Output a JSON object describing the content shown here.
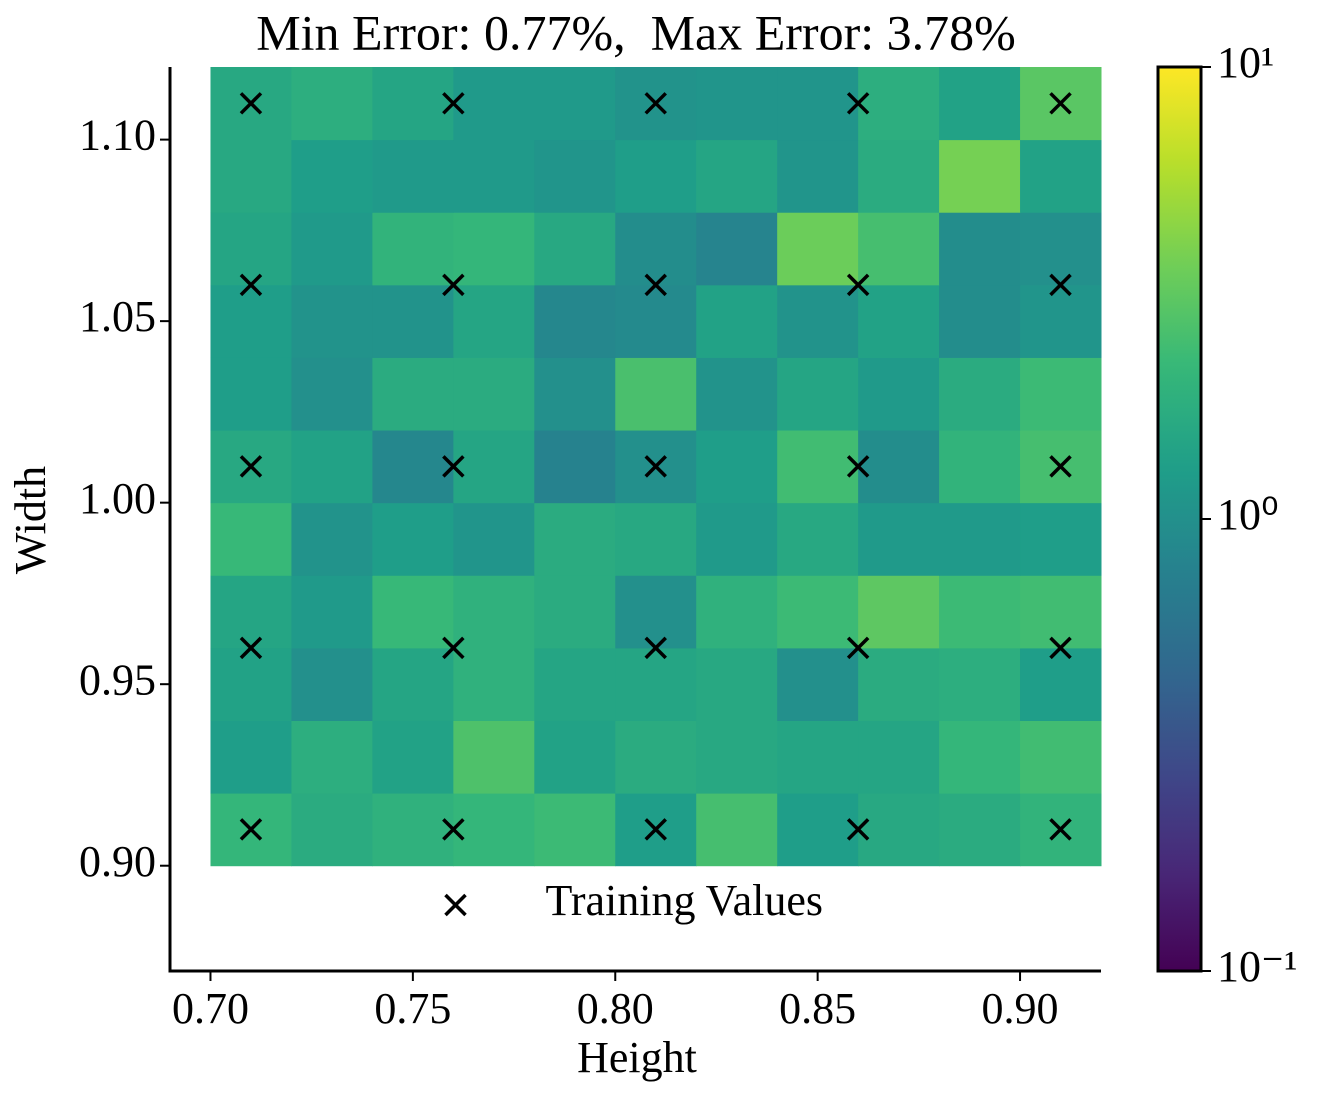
{
  "chart_data": {
    "type": "heatmap",
    "title": "Min Error: 0.77%,  Max Error: 3.78%",
    "x_label": "Height",
    "y_label": "Width",
    "x": [
      0.71,
      0.73,
      0.75,
      0.77,
      0.79,
      0.81,
      0.83,
      0.85,
      0.87,
      0.89,
      0.91
    ],
    "y": [
      0.91,
      0.93,
      0.95,
      0.97,
      0.99,
      1.01,
      1.03,
      1.05,
      1.07,
      1.09,
      1.11
    ],
    "z": [
      [
        2.1,
        1.7,
        1.9,
        2.1,
        2.3,
        1.3,
        2.5,
        1.3,
        1.6,
        1.7,
        2.0
      ],
      [
        1.3,
        1.8,
        1.4,
        2.7,
        1.4,
        1.7,
        1.6,
        1.5,
        1.5,
        2.1,
        2.4
      ],
      [
        1.4,
        1.0,
        1.5,
        1.9,
        1.5,
        1.5,
        1.6,
        1.0,
        1.7,
        1.8,
        1.3
      ],
      [
        1.5,
        1.2,
        2.2,
        1.9,
        1.7,
        1.0,
        1.9,
        2.3,
        3.1,
        2.3,
        2.4
      ],
      [
        2.2,
        1.05,
        1.3,
        1.1,
        1.7,
        1.6,
        1.2,
        1.6,
        1.2,
        1.2,
        1.3
      ],
      [
        1.6,
        1.4,
        0.85,
        1.5,
        0.77,
        1.0,
        1.3,
        2.4,
        0.95,
        2.0,
        2.5
      ],
      [
        1.3,
        1.0,
        1.7,
        1.7,
        1.0,
        2.6,
        1.05,
        1.5,
        1.2,
        1.7,
        2.3
      ],
      [
        1.3,
        1.05,
        1.05,
        1.5,
        0.85,
        0.9,
        1.4,
        1.05,
        1.4,
        0.95,
        1.1
      ],
      [
        1.5,
        1.2,
        2.0,
        2.1,
        1.6,
        0.95,
        0.8,
        3.5,
        2.5,
        0.95,
        1.0
      ],
      [
        1.6,
        1.3,
        1.2,
        1.2,
        1.1,
        1.3,
        1.5,
        1.1,
        1.7,
        3.78,
        1.4
      ],
      [
        1.6,
        1.8,
        1.5,
        1.2,
        1.2,
        1.05,
        1.1,
        1.1,
        1.8,
        1.4,
        3.0
      ]
    ],
    "colormap": "viridis",
    "color_log_scale": true,
    "clim": [
      0.1,
      10
    ],
    "cticks": [
      {
        "value": 0.1,
        "label": "10⁻¹"
      },
      {
        "value": 1,
        "label": "10⁰"
      },
      {
        "value": 10,
        "label": "10¹"
      }
    ],
    "markers": {
      "name": "Training Values",
      "color": "#000000",
      "x": [
        0.71,
        0.76,
        0.81,
        0.86,
        0.91,
        0.71,
        0.76,
        0.81,
        0.86,
        0.91,
        0.71,
        0.76,
        0.81,
        0.86,
        0.91,
        0.71,
        0.76,
        0.81,
        0.86,
        0.91,
        0.71,
        0.76,
        0.81,
        0.86,
        0.91
      ],
      "y": [
        0.91,
        0.91,
        0.91,
        0.91,
        0.91,
        0.96,
        0.96,
        0.96,
        0.96,
        0.96,
        1.01,
        1.01,
        1.01,
        1.01,
        1.01,
        1.06,
        1.06,
        1.06,
        1.06,
        1.06,
        1.11,
        1.11,
        1.11,
        1.11,
        1.11
      ]
    },
    "legend": "lower center",
    "xlim": [
      0.69,
      0.92
    ],
    "ylim": [
      0.871,
      1.12
    ],
    "xticks": [
      {
        "value": 0.7,
        "label": "0.70"
      },
      {
        "value": 0.75,
        "label": "0.75"
      },
      {
        "value": 0.8,
        "label": "0.80"
      },
      {
        "value": 0.85,
        "label": "0.85"
      },
      {
        "value": 0.9,
        "label": "0.90"
      }
    ],
    "yticks": [
      {
        "value": 0.9,
        "label": "0.90"
      },
      {
        "value": 0.95,
        "label": "0.95"
      },
      {
        "value": 1.0,
        "label": "1.00"
      },
      {
        "value": 1.05,
        "label": "1.05"
      },
      {
        "value": 1.1,
        "label": "1.10"
      }
    ]
  }
}
